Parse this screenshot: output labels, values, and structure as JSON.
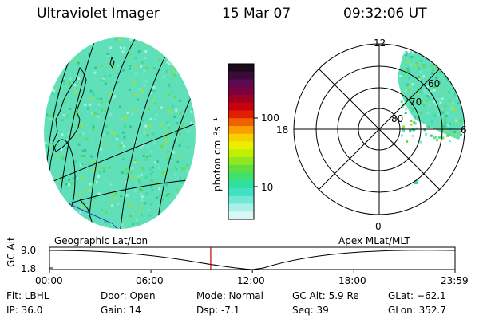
{
  "header": {
    "instrument": "Ultraviolet Imager",
    "date": "15 Mar 07",
    "time": "09:32:06 UT"
  },
  "panels": {
    "geographic_label": "Geographic Lat/Lon",
    "apex_label": "Apex MLat/MLT"
  },
  "colorbar": {
    "label": "photon cm⁻²s⁻¹",
    "ticks": [
      "100",
      "10"
    ],
    "colors": [
      "#1a0a1a",
      "#3a0a3a",
      "#5a0a50",
      "#7a0040",
      "#a00020",
      "#c80010",
      "#e02000",
      "#f06000",
      "#f8a000",
      "#f8d000",
      "#e8f000",
      "#c0f000",
      "#90e820",
      "#60e040",
      "#40e070",
      "#30e0a0",
      "#40e0c0",
      "#70e8d8",
      "#a8f0e8",
      "#d8f8f8"
    ]
  },
  "polar": {
    "mlt_labels": {
      "top": "12",
      "left": "18",
      "right": "6",
      "bottom": "0"
    },
    "lat_labels": [
      "60",
      "70",
      "80"
    ]
  },
  "timeline": {
    "axis_label": "GC Alt",
    "y_ticks": [
      "9.0",
      "1.8"
    ],
    "x_ticks": [
      "00:00",
      "06:00",
      "12:00",
      "18:00",
      "23:59"
    ],
    "marker_time": "09:32",
    "marker_color": "#cc0000"
  },
  "info": {
    "flt": "Flt: LBHL",
    "ip": "IP: 36.0",
    "door": "Door: Open",
    "gain": "Gain: 14",
    "mode": "Mode: Normal",
    "dsp": "Dsp:    -7.1",
    "gc_alt": "GC Alt: 5.9 Re",
    "seq": "Seq: 39",
    "glat": "GLat: −62.1",
    "glon": "GLon: 352.7"
  }
}
